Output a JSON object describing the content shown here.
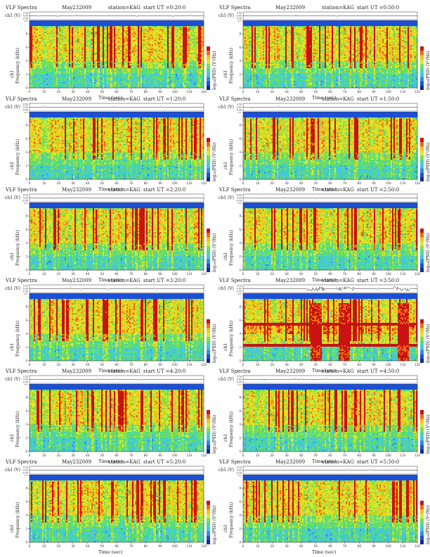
{
  "header": {
    "title": "VLF Spectra",
    "date": "May232009",
    "station": "station=KAG"
  },
  "axis_labels": {
    "channel": "ch1 (V)",
    "y_prefix": "ch1",
    "y_main": "Frequency (kHz)",
    "x": "Time (sec)",
    "colorbar": "log₁₀(PSD) (V²/Hz)"
  },
  "chart_data": [
    {
      "type": "heatmap",
      "start_label": "start UT =0:20:0",
      "xlim": [
        0,
        120
      ],
      "ylim": [
        0,
        10
      ],
      "x_ticks": [
        0,
        10,
        20,
        30,
        40,
        50,
        60,
        70,
        80,
        90,
        100,
        110,
        120
      ],
      "y_ticks": [
        0,
        2,
        4,
        6,
        8,
        10
      ],
      "wave_ticks": [
        "0.50",
        "0.00",
        "-0.50"
      ]
    },
    {
      "type": "heatmap",
      "start_label": "start UT =0:50:0",
      "xlim": [
        0,
        120
      ],
      "ylim": [
        0,
        10
      ],
      "x_ticks": [
        0,
        10,
        20,
        30,
        40,
        50,
        60,
        70,
        80,
        90,
        100,
        110,
        120
      ],
      "y_ticks": [
        0,
        2,
        4,
        6,
        8,
        10
      ],
      "wave_ticks": [
        "0.50",
        "0.00",
        "-0.50"
      ]
    },
    {
      "type": "heatmap",
      "start_label": "start UT =1:20:0",
      "xlim": [
        0,
        120
      ],
      "ylim": [
        0,
        10
      ],
      "x_ticks": [
        0,
        10,
        20,
        30,
        40,
        50,
        60,
        70,
        80,
        90,
        100,
        110,
        120
      ],
      "y_ticks": [
        0,
        2,
        4,
        6,
        8,
        10
      ],
      "wave_ticks": [
        "0.50",
        "0.00",
        "-0.50"
      ]
    },
    {
      "type": "heatmap",
      "start_label": "start UT =1:50:0",
      "xlim": [
        0,
        120
      ],
      "ylim": [
        0,
        10
      ],
      "x_ticks": [
        0,
        10,
        20,
        30,
        40,
        50,
        60,
        70,
        80,
        90,
        100,
        110,
        120
      ],
      "y_ticks": [
        0,
        2,
        4,
        6,
        8,
        10
      ],
      "wave_ticks": [
        "0.50",
        "0.00",
        "-0.50"
      ]
    },
    {
      "type": "heatmap",
      "start_label": "start UT =2:20:0",
      "xlim": [
        0,
        120
      ],
      "ylim": [
        0,
        10
      ],
      "x_ticks": [
        0,
        10,
        20,
        30,
        40,
        50,
        60,
        70,
        80,
        90,
        100,
        110,
        120
      ],
      "y_ticks": [
        0,
        2,
        4,
        6,
        8,
        10
      ],
      "wave_ticks": [
        "0.50",
        "0.00",
        "-0.50"
      ]
    },
    {
      "type": "heatmap",
      "start_label": "start UT =2:50:0",
      "xlim": [
        0,
        120
      ],
      "ylim": [
        0,
        10
      ],
      "x_ticks": [
        0,
        10,
        20,
        30,
        40,
        50,
        60,
        70,
        80,
        90,
        100,
        110,
        120
      ],
      "y_ticks": [
        0,
        2,
        4,
        6,
        8,
        10
      ],
      "wave_ticks": [
        "0.50",
        "0.00",
        "-0.50"
      ]
    },
    {
      "type": "heatmap",
      "start_label": "start UT =3:20:0",
      "xlim": [
        0,
        120
      ],
      "ylim": [
        0,
        10
      ],
      "x_ticks": [
        0,
        10,
        20,
        30,
        40,
        50,
        60,
        70,
        80,
        90,
        100,
        110,
        120
      ],
      "y_ticks": [
        0,
        2,
        4,
        6,
        8,
        10
      ],
      "wave_ticks": [
        "0.50",
        "0.00",
        "-0.50"
      ]
    },
    {
      "type": "heatmap",
      "start_label": "start UT =3:50:0",
      "xlim": [
        0,
        120
      ],
      "ylim": [
        0,
        10
      ],
      "x_ticks": [
        0,
        10,
        20,
        30,
        40,
        50,
        60,
        70,
        80,
        90,
        100,
        110,
        120
      ],
      "y_ticks": [
        0,
        2,
        4,
        6,
        8,
        10
      ],
      "wave_ticks": [
        "0.50",
        "0.00",
        "-0.50"
      ],
      "bursts_sec": [
        50,
        70,
        110
      ],
      "tone_khz": [
        5.5,
        2.2
      ]
    },
    {
      "type": "heatmap",
      "start_label": "start UT =4:20:0",
      "xlim": [
        0,
        120
      ],
      "ylim": [
        0,
        10
      ],
      "x_ticks": [
        0,
        10,
        20,
        30,
        40,
        50,
        60,
        70,
        80,
        90,
        100,
        110,
        120
      ],
      "y_ticks": [
        0,
        2,
        4,
        6,
        8,
        10
      ],
      "wave_ticks": [
        "0.50",
        "0.00",
        "-0.50"
      ]
    },
    {
      "type": "heatmap",
      "start_label": "start UT =4:50:0",
      "xlim": [
        0,
        120
      ],
      "ylim": [
        0,
        10
      ],
      "x_ticks": [
        0,
        10,
        20,
        30,
        40,
        50,
        60,
        70,
        80,
        90,
        100,
        110,
        120
      ],
      "y_ticks": [
        0,
        2,
        4,
        6,
        8,
        10
      ],
      "wave_ticks": [
        "0.50",
        "0.00",
        "-0.50"
      ]
    },
    {
      "type": "heatmap",
      "start_label": "start UT =5:20:0",
      "xlim": [
        0,
        120
      ],
      "ylim": [
        0,
        10
      ],
      "x_ticks": [
        0,
        10,
        20,
        30,
        40,
        50,
        60,
        70,
        80,
        90,
        100,
        110,
        120
      ],
      "y_ticks": [
        0,
        2,
        4,
        6,
        8,
        10
      ],
      "wave_ticks": [
        "0.50",
        "0.00",
        "-0.50"
      ]
    },
    {
      "type": "heatmap",
      "start_label": "start UT =5:50:0",
      "xlim": [
        0,
        120
      ],
      "ylim": [
        0,
        10
      ],
      "x_ticks": [
        0,
        10,
        20,
        30,
        40,
        50,
        60,
        70,
        80,
        90,
        100,
        110,
        120
      ],
      "y_ticks": [
        0,
        2,
        4,
        6,
        8,
        10
      ],
      "wave_ticks": [
        "0.50",
        "0.00",
        "-0.50"
      ]
    }
  ]
}
